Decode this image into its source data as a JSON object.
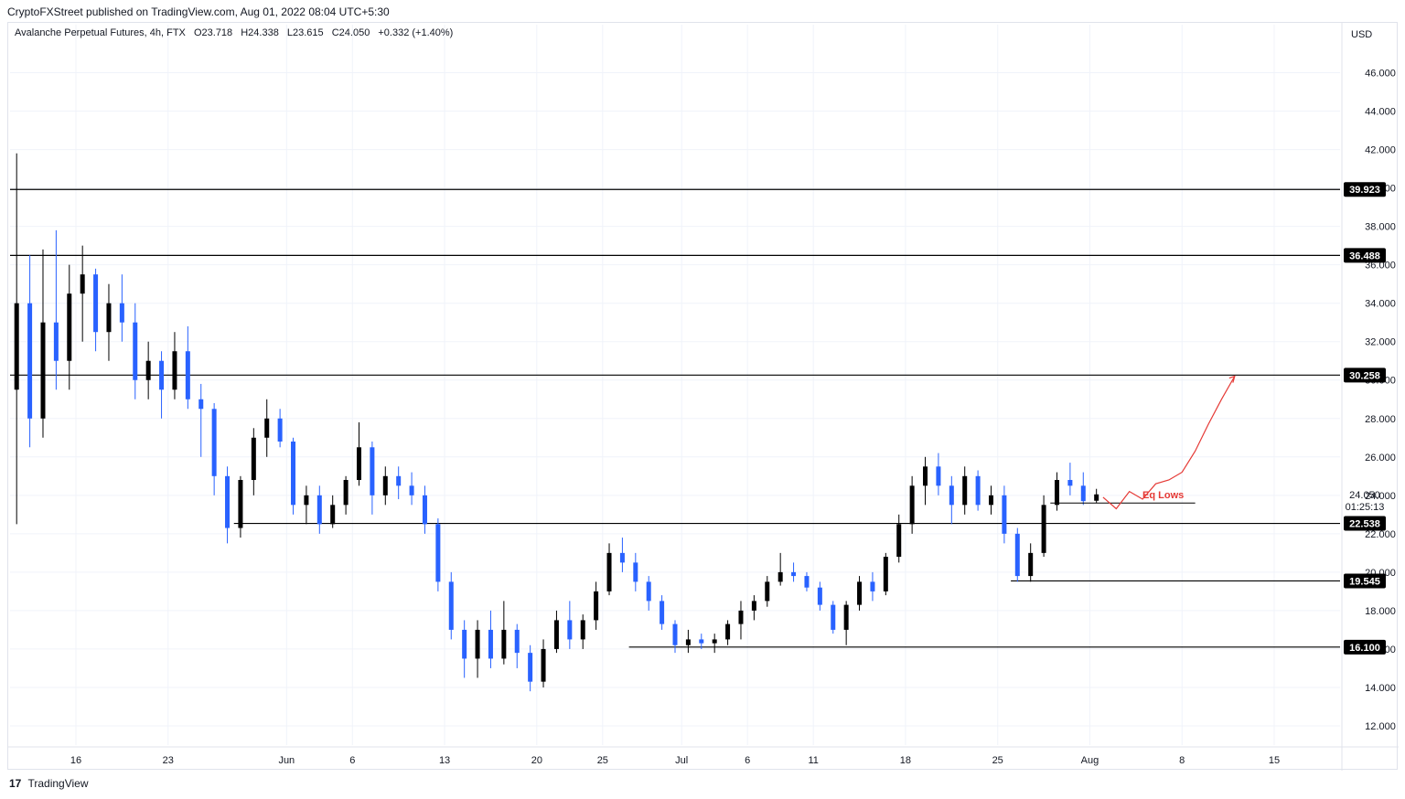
{
  "publisher": "CryptoFXStreet published on TradingView.com, Aug 01, 2022 08:04 UTC+5:30",
  "legend": {
    "symbol": "Avalanche Perpetual Futures, 4h, FTX",
    "open": "O23.718",
    "high": "H24.338",
    "low": "L23.615",
    "close": "C24.050",
    "change": "+0.332 (+1.40%)"
  },
  "footer": {
    "logo": "17",
    "brand": "TradingView"
  },
  "colors": {
    "up": "#000000",
    "down": "#2962ff",
    "annotation": "#e53935",
    "level": "#000000",
    "grid": "#f0f3fa"
  },
  "chart_data": {
    "type": "candlestick",
    "currency": "USD",
    "ylim": [
      11,
      48.5
    ],
    "yticks": [
      "12.000",
      "14.000",
      "16.000",
      "18.000",
      "20.000",
      "22.000",
      "24.000",
      "26.000",
      "28.000",
      "30.000",
      "32.000",
      "34.000",
      "36.000",
      "38.000",
      "40.000",
      "42.000",
      "44.000",
      "46.000"
    ],
    "xticks": [
      "16",
      "23",
      "Jun",
      "6",
      "13",
      "20",
      "25",
      "Jul",
      "6",
      "11",
      "18",
      "25",
      "Aug",
      "8",
      "15"
    ],
    "xtick_dates": [
      "2022-05-16",
      "2022-05-23",
      "2022-06-01",
      "2022-06-06",
      "2022-06-13",
      "2022-06-20",
      "2022-06-25",
      "2022-07-01",
      "2022-07-06",
      "2022-07-11",
      "2022-07-18",
      "2022-07-25",
      "2022-08-01",
      "2022-08-08",
      "2022-08-15"
    ],
    "x_range": [
      "2022-05-11",
      "2022-08-20"
    ],
    "grid": true,
    "levels": [
      {
        "value": 39.923,
        "label": "39.923",
        "from": "2022-05-11",
        "to": "2022-08-20"
      },
      {
        "value": 36.488,
        "label": "36.488",
        "from": "2022-05-11",
        "to": "2022-08-20"
      },
      {
        "value": 30.258,
        "label": "30.258",
        "from": "2022-05-11",
        "to": "2022-08-20"
      },
      {
        "value": 22.538,
        "label": "22.538",
        "from": "2022-05-28",
        "to": "2022-08-20"
      },
      {
        "value": 19.545,
        "label": "19.545",
        "from": "2022-07-26",
        "to": "2022-08-20"
      },
      {
        "value": 16.1,
        "label": "16.100",
        "from": "2022-06-27",
        "to": "2022-08-20"
      }
    ],
    "last_price": {
      "value": 24.05,
      "label": "24.050",
      "countdown": "01:25:13"
    },
    "annotation": {
      "text": "Eq Lows",
      "line": {
        "value": 23.6,
        "from": "2022-07-29",
        "to": "2022-08-09"
      },
      "projection": [
        [
          "2022-08-02",
          23.9
        ],
        [
          "2022-08-03",
          23.3
        ],
        [
          "2022-08-04",
          24.2
        ],
        [
          "2022-08-05",
          23.8
        ],
        [
          "2022-08-06",
          24.6
        ],
        [
          "2022-08-07",
          24.8
        ],
        [
          "2022-08-08",
          25.2
        ],
        [
          "2022-08-09",
          26.3
        ],
        [
          "2022-08-10",
          27.7
        ],
        [
          "2022-08-11",
          29.0
        ],
        [
          "2022-08-12",
          30.2
        ]
      ]
    },
    "candles": [
      [
        "2022-05-11",
        29.5,
        41.8,
        22.5,
        34.0
      ],
      [
        "2022-05-12",
        34.0,
        36.5,
        26.5,
        28.0
      ],
      [
        "2022-05-13",
        28.0,
        36.8,
        27.0,
        33.0
      ],
      [
        "2022-05-14",
        33.0,
        37.8,
        29.5,
        31.0
      ],
      [
        "2022-05-15",
        31.0,
        36.0,
        29.5,
        34.5
      ],
      [
        "2022-05-16",
        34.5,
        37.0,
        32.0,
        35.5
      ],
      [
        "2022-05-17",
        35.5,
        35.8,
        31.5,
        32.5
      ],
      [
        "2022-05-18",
        32.5,
        35.0,
        31.0,
        34.0
      ],
      [
        "2022-05-19",
        34.0,
        35.5,
        32.0,
        33.0
      ],
      [
        "2022-05-20",
        33.0,
        34.0,
        29.0,
        30.0
      ],
      [
        "2022-05-21",
        30.0,
        32.0,
        29.0,
        31.0
      ],
      [
        "2022-05-22",
        31.0,
        31.5,
        28.0,
        29.5
      ],
      [
        "2022-05-23",
        29.5,
        32.5,
        29.0,
        31.5
      ],
      [
        "2022-05-24",
        31.5,
        32.8,
        28.5,
        29.0
      ],
      [
        "2022-05-25",
        29.0,
        29.8,
        26.0,
        28.5
      ],
      [
        "2022-05-26",
        28.5,
        28.8,
        24.0,
        25.0
      ],
      [
        "2022-05-27",
        25.0,
        25.5,
        21.5,
        22.3
      ],
      [
        "2022-05-28",
        22.3,
        25.0,
        21.8,
        24.8
      ],
      [
        "2022-05-29",
        24.8,
        27.5,
        24.0,
        27.0
      ],
      [
        "2022-05-30",
        27.0,
        29.0,
        26.0,
        28.0
      ],
      [
        "2022-05-31",
        28.0,
        28.5,
        26.5,
        26.8
      ],
      [
        "2022-06-01",
        26.8,
        27.0,
        23.0,
        23.5
      ],
      [
        "2022-06-02",
        23.5,
        24.5,
        22.5,
        24.0
      ],
      [
        "2022-06-03",
        24.0,
        24.5,
        22.0,
        22.5
      ],
      [
        "2022-06-04",
        22.5,
        24.0,
        22.3,
        23.5
      ],
      [
        "2022-06-05",
        23.5,
        25.0,
        23.0,
        24.8
      ],
      [
        "2022-06-06",
        24.8,
        27.8,
        24.5,
        26.5
      ],
      [
        "2022-06-07",
        26.5,
        26.8,
        23.0,
        24.0
      ],
      [
        "2022-06-08",
        24.0,
        25.5,
        23.5,
        25.0
      ],
      [
        "2022-06-09",
        25.0,
        25.5,
        23.8,
        24.5
      ],
      [
        "2022-06-10",
        24.5,
        25.2,
        23.5,
        24.0
      ],
      [
        "2022-06-11",
        24.0,
        24.5,
        22.0,
        22.5
      ],
      [
        "2022-06-12",
        22.5,
        22.8,
        19.0,
        19.5
      ],
      [
        "2022-06-13",
        19.5,
        20.0,
        16.5,
        17.0
      ],
      [
        "2022-06-14",
        17.0,
        17.5,
        14.5,
        15.5
      ],
      [
        "2022-06-15",
        15.5,
        17.5,
        14.5,
        17.0
      ],
      [
        "2022-06-16",
        17.0,
        18.0,
        15.0,
        15.5
      ],
      [
        "2022-06-17",
        15.5,
        18.5,
        15.2,
        17.0
      ],
      [
        "2022-06-18",
        17.0,
        17.3,
        15.0,
        15.8
      ],
      [
        "2022-06-19",
        15.8,
        16.2,
        13.8,
        14.3
      ],
      [
        "2022-06-20",
        14.3,
        16.5,
        14.0,
        16.0
      ],
      [
        "2022-06-21",
        16.0,
        18.0,
        15.8,
        17.5
      ],
      [
        "2022-06-22",
        17.5,
        18.5,
        16.0,
        16.5
      ],
      [
        "2022-06-23",
        16.5,
        17.8,
        16.0,
        17.5
      ],
      [
        "2022-06-24",
        17.5,
        19.5,
        17.0,
        19.0
      ],
      [
        "2022-06-25",
        19.0,
        21.5,
        18.8,
        21.0
      ],
      [
        "2022-06-26",
        21.0,
        21.8,
        20.0,
        20.5
      ],
      [
        "2022-06-27",
        20.5,
        21.0,
        19.0,
        19.5
      ],
      [
        "2022-06-28",
        19.5,
        19.8,
        18.0,
        18.5
      ],
      [
        "2022-06-29",
        18.5,
        18.8,
        17.0,
        17.3
      ],
      [
        "2022-06-30",
        17.3,
        17.5,
        15.8,
        16.2
      ],
      [
        "2022-07-01",
        16.2,
        17.0,
        15.8,
        16.5
      ],
      [
        "2022-07-02",
        16.5,
        16.8,
        16.0,
        16.3
      ],
      [
        "2022-07-03",
        16.3,
        16.8,
        15.8,
        16.5
      ],
      [
        "2022-07-04",
        16.5,
        17.5,
        16.2,
        17.3
      ],
      [
        "2022-07-05",
        17.3,
        18.5,
        16.5,
        18.0
      ],
      [
        "2022-07-06",
        18.0,
        18.8,
        17.5,
        18.5
      ],
      [
        "2022-07-07",
        18.5,
        19.8,
        18.2,
        19.5
      ],
      [
        "2022-07-08",
        19.5,
        21.0,
        19.3,
        20.0
      ],
      [
        "2022-07-09",
        20.0,
        20.5,
        19.5,
        19.8
      ],
      [
        "2022-07-10",
        19.8,
        20.0,
        19.0,
        19.2
      ],
      [
        "2022-07-11",
        19.2,
        19.5,
        18.0,
        18.3
      ],
      [
        "2022-07-12",
        18.3,
        18.5,
        16.8,
        17.0
      ],
      [
        "2022-07-13",
        17.0,
        18.5,
        16.2,
        18.3
      ],
      [
        "2022-07-14",
        18.3,
        19.8,
        18.0,
        19.5
      ],
      [
        "2022-07-15",
        19.5,
        20.0,
        18.5,
        19.0
      ],
      [
        "2022-07-16",
        19.0,
        21.0,
        18.8,
        20.8
      ],
      [
        "2022-07-17",
        20.8,
        23.0,
        20.5,
        22.5
      ],
      [
        "2022-07-18",
        22.5,
        25.0,
        22.0,
        24.5
      ],
      [
        "2022-07-19",
        24.5,
        26.0,
        23.5,
        25.5
      ],
      [
        "2022-07-20",
        25.5,
        26.2,
        24.0,
        24.5
      ],
      [
        "2022-07-21",
        24.5,
        25.0,
        22.5,
        23.5
      ],
      [
        "2022-07-22",
        23.5,
        25.5,
        23.0,
        25.0
      ],
      [
        "2022-07-23",
        25.0,
        25.3,
        23.2,
        23.5
      ],
      [
        "2022-07-24",
        23.5,
        24.5,
        23.0,
        24.0
      ],
      [
        "2022-07-25",
        24.0,
        24.5,
        21.5,
        22.0
      ],
      [
        "2022-07-26",
        22.0,
        22.3,
        19.5,
        19.8
      ],
      [
        "2022-07-27",
        19.8,
        21.5,
        19.5,
        21.0
      ],
      [
        "2022-07-28",
        21.0,
        24.0,
        20.8,
        23.5
      ],
      [
        "2022-07-29",
        23.5,
        25.2,
        23.2,
        24.8
      ],
      [
        "2022-07-30",
        24.8,
        25.7,
        24.0,
        24.5
      ],
      [
        "2022-07-31",
        24.5,
        25.2,
        23.5,
        23.7
      ],
      [
        "2022-08-01",
        23.718,
        24.338,
        23.615,
        24.05
      ]
    ]
  }
}
